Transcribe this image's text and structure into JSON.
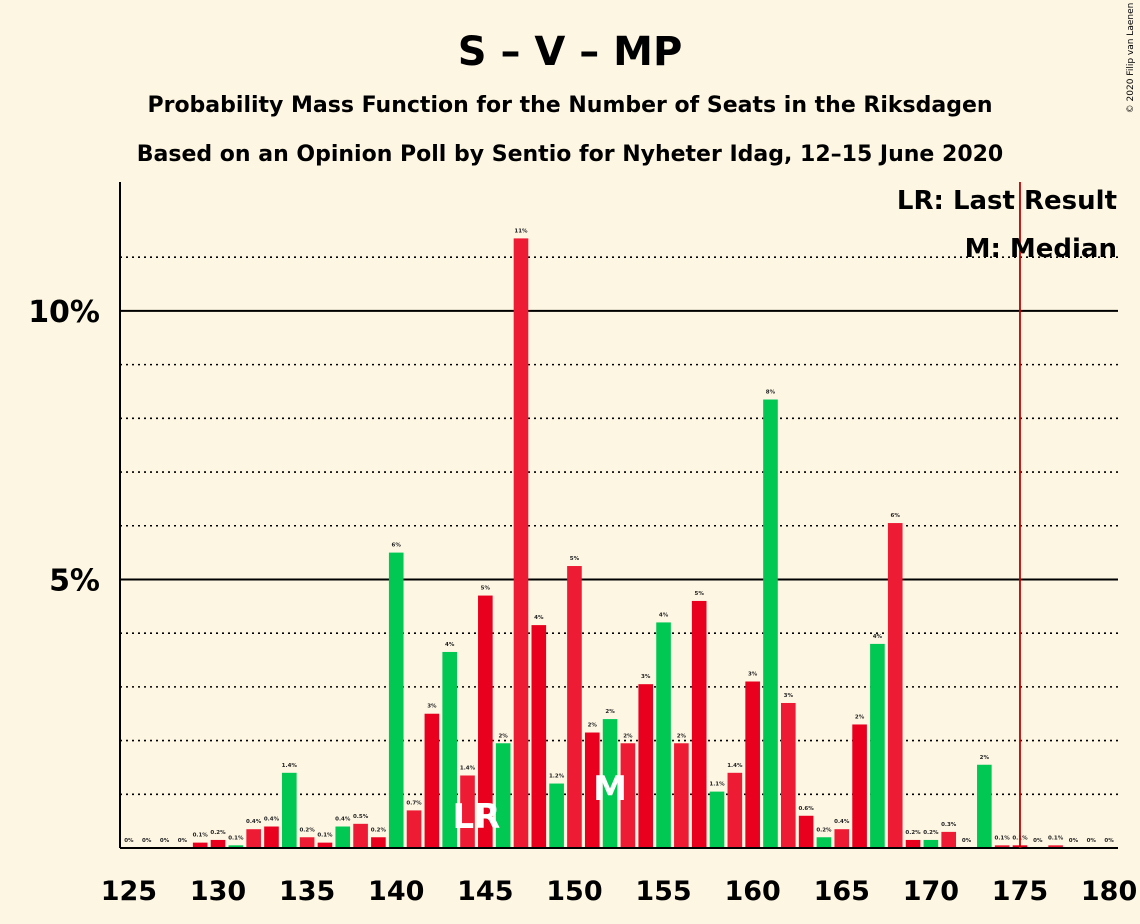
{
  "title": "S – V – MP",
  "subtitle1": "Probability Mass Function for the Number of Seats in the Riksdagen",
  "subtitle2": "Based on an Opinion Poll by Sentio for Nyheter Idag, 12–15 June 2020",
  "copyright": "© 2020 Filip van Laenen",
  "legend": {
    "lr": "LR: Last Result",
    "m": "M: Median"
  },
  "markers": {
    "lr": "LR",
    "m": "M"
  },
  "colors": {
    "background": "#FDF6E3",
    "red_a": "#E8001E",
    "red_b": "#ED1B34",
    "green": "#00C853",
    "last_result_line": "#C00000"
  },
  "chart_data": {
    "type": "bar",
    "xlabel": "",
    "ylabel": "",
    "x": [
      125,
      126,
      127,
      128,
      129,
      130,
      131,
      132,
      133,
      134,
      135,
      136,
      137,
      138,
      139,
      140,
      141,
      142,
      143,
      144,
      145,
      146,
      147,
      148,
      149,
      150,
      151,
      152,
      153,
      154,
      155,
      156,
      157,
      158,
      159,
      160,
      161,
      162,
      163,
      164,
      165,
      166,
      167,
      168,
      169,
      170,
      171,
      172,
      173,
      174,
      175,
      176,
      177,
      178,
      179,
      180
    ],
    "values": [
      0,
      0,
      0,
      0,
      0.1,
      0.15,
      0.05,
      0.35,
      0.4,
      1.4,
      0.2,
      0.1,
      0.4,
      0.45,
      0.2,
      5.5,
      0.7,
      2.5,
      3.65,
      1.35,
      4.7,
      1.95,
      11.35,
      4.15,
      1.2,
      5.25,
      2.15,
      2.4,
      1.95,
      3.05,
      4.2,
      1.95,
      4.6,
      1.05,
      1.4,
      3.1,
      8.35,
      2.7,
      0.6,
      0.2,
      0.35,
      2.3,
      3.8,
      6.05,
      0.15,
      0.15,
      0.3,
      0,
      1.55,
      0.05,
      0.05,
      0,
      0.05,
      0,
      0,
      0
    ],
    "colors": [
      "green",
      "green",
      "green",
      "green",
      "red_a",
      "red_a",
      "green",
      "red_b",
      "red_a",
      "green",
      "red_b",
      "red_a",
      "green",
      "red_b",
      "red_a",
      "green",
      "red_b",
      "red_a",
      "green",
      "red_b",
      "red_a",
      "green",
      "red_b",
      "red_a",
      "green",
      "red_b",
      "red_a",
      "green",
      "red_b",
      "red_a",
      "green",
      "red_b",
      "red_a",
      "green",
      "red_b",
      "red_a",
      "green",
      "red_b",
      "red_a",
      "green",
      "red_b",
      "red_a",
      "green",
      "red_b",
      "red_a",
      "green",
      "red_b",
      "red_a",
      "green",
      "red_b",
      "red_a",
      "green",
      "red_b",
      "red_a",
      "green",
      "red_b"
    ],
    "data_labels": [
      "0%",
      "0%",
      "0%",
      "0%",
      "0.1%",
      "0.2%",
      "0.1%",
      "0.4%",
      "0.4%",
      "1.4%",
      "0.2%",
      "0.1%",
      "0.4%",
      "0.5%",
      "0.2%",
      "6%",
      "0.7%",
      "3%",
      "4%",
      "1.4%",
      "5%",
      "2%",
      "11%",
      "4%",
      "1.2%",
      "5%",
      "2%",
      "2%",
      "2%",
      "3%",
      "4%",
      "2%",
      "5%",
      "1.1%",
      "1.4%",
      "3%",
      "8%",
      "3%",
      "0.6%",
      "0.2%",
      "0.4%",
      "2%",
      "4%",
      "6%",
      "0.2%",
      "0.2%",
      "0.3%",
      "0%",
      "2%",
      "0.1%",
      "0.1%",
      "0%",
      "0.1%",
      "0%",
      "0%",
      "0%"
    ],
    "xticks": [
      125,
      130,
      135,
      140,
      145,
      150,
      155,
      160,
      165,
      170,
      175,
      180
    ],
    "xtick_labels": [
      "125",
      "130",
      "135",
      "140",
      "145",
      "150",
      "155",
      "160",
      "165",
      "170",
      "175",
      "180"
    ],
    "yticks": [
      5,
      10
    ],
    "ytick_labels": [
      "5%",
      "10%"
    ],
    "ylim": [
      0,
      12.4
    ],
    "xlim": [
      124.5,
      180.5
    ],
    "minor_grid": [
      1,
      2,
      3,
      4,
      6,
      7,
      8,
      9,
      11
    ],
    "last_result_seat": 144,
    "median_seat": 152,
    "last_result_line_x": 175
  }
}
